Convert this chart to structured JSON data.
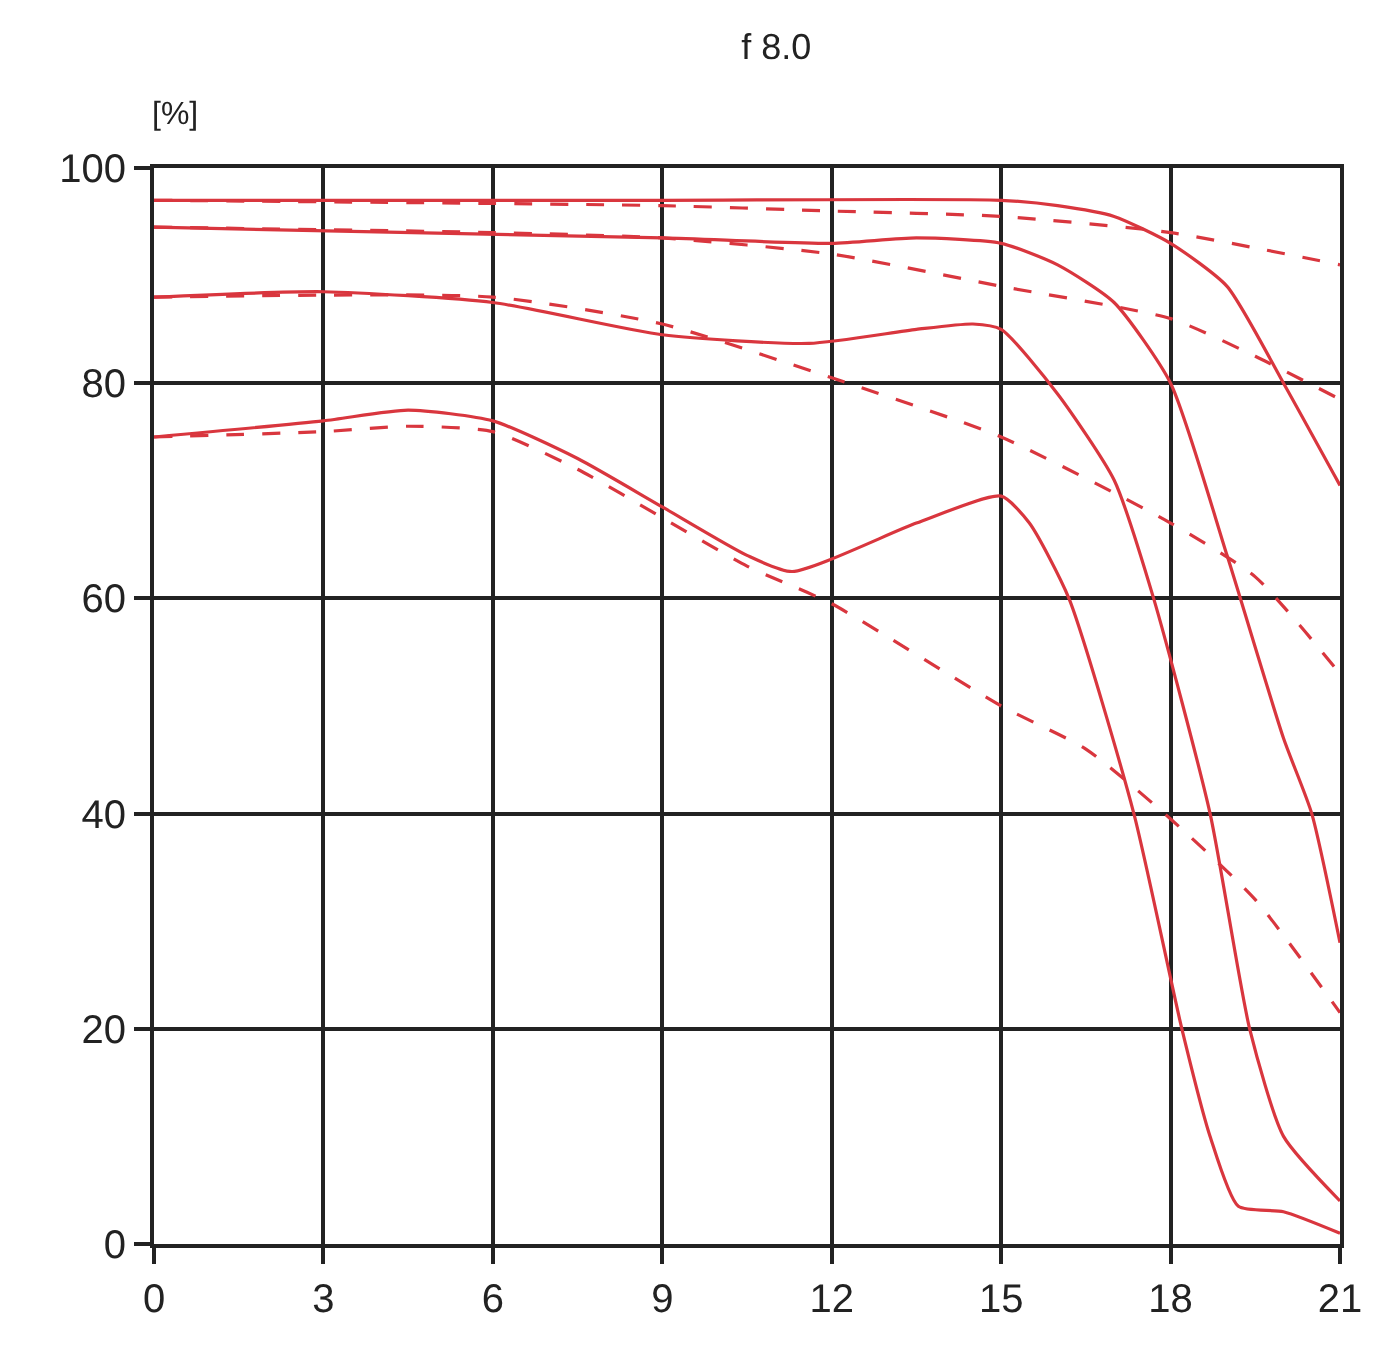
{
  "chart_data": {
    "type": "line",
    "title": "f 8.0",
    "ylabel": "[%]",
    "xlim": [
      0,
      21
    ],
    "xticks": [
      0,
      3,
      6,
      9,
      12,
      15,
      18,
      21
    ],
    "ylim": [
      0,
      100
    ],
    "yticks": [
      0,
      20,
      40,
      60,
      80,
      100
    ],
    "grid": true,
    "marker": "none",
    "series": [
      {
        "color": "#d9363e",
        "line_style": "solid",
        "x": [
          0,
          9,
          15,
          16,
          17,
          18,
          19,
          20,
          21
        ],
        "values": [
          97,
          97,
          97,
          96.5,
          95.5,
          93,
          89,
          80,
          70.5
        ]
      },
      {
        "color": "#d9363e",
        "line_style": "dashed",
        "x": [
          0,
          9,
          12,
          15,
          18,
          21
        ],
        "values": [
          97,
          96.5,
          96,
          95.5,
          94,
          91
        ]
      },
      {
        "color": "#d9363e",
        "line_style": "solid",
        "x": [
          0,
          9,
          12,
          13.5,
          15,
          16,
          17,
          18,
          19,
          20,
          20.5,
          21
        ],
        "values": [
          94.5,
          93.5,
          93,
          93.5,
          93,
          91,
          87.5,
          80,
          64,
          47,
          40,
          28
        ]
      },
      {
        "color": "#d9363e",
        "line_style": "dashed",
        "x": [
          0,
          6,
          9,
          12,
          15,
          18,
          19.5,
          21
        ],
        "values": [
          94.5,
          94,
          93.5,
          92,
          89,
          86,
          82.5,
          78.5
        ]
      },
      {
        "color": "#d9363e",
        "line_style": "solid",
        "x": [
          0,
          3,
          6,
          9,
          11.6,
          13.5,
          14.5,
          15,
          16,
          17,
          17.7,
          18.7,
          19.4,
          20,
          21
        ],
        "values": [
          88,
          88.5,
          87.5,
          84.5,
          83.7,
          85,
          85.5,
          85,
          79,
          71,
          60,
          40,
          20,
          10,
          4
        ]
      },
      {
        "color": "#d9363e",
        "line_style": "dashed",
        "x": [
          0,
          6,
          9,
          12,
          15,
          18,
          19.5,
          21
        ],
        "values": [
          88,
          88,
          85.5,
          80.5,
          75,
          67,
          62,
          53
        ]
      },
      {
        "color": "#d9363e",
        "line_style": "solid",
        "x": [
          0,
          3,
          4.5,
          6,
          7.5,
          9,
          10.5,
          11.3,
          13.5,
          15,
          15.5,
          16.2,
          17.35,
          18.2,
          18.7,
          19.2,
          20,
          21
        ],
        "values": [
          75,
          76.5,
          77.5,
          76.5,
          73,
          68.5,
          64,
          62.5,
          67,
          69.5,
          67,
          60,
          40,
          20,
          10,
          3.5,
          3,
          1
        ]
      },
      {
        "color": "#d9363e",
        "line_style": "dashed",
        "x": [
          0,
          3,
          4.5,
          6,
          7.5,
          9,
          10.5,
          12,
          15,
          16.5,
          18,
          19.5,
          21
        ],
        "values": [
          75,
          75.5,
          76,
          75.5,
          72,
          67.5,
          63,
          59.5,
          50,
          46,
          39.5,
          32,
          21.5
        ]
      }
    ]
  }
}
